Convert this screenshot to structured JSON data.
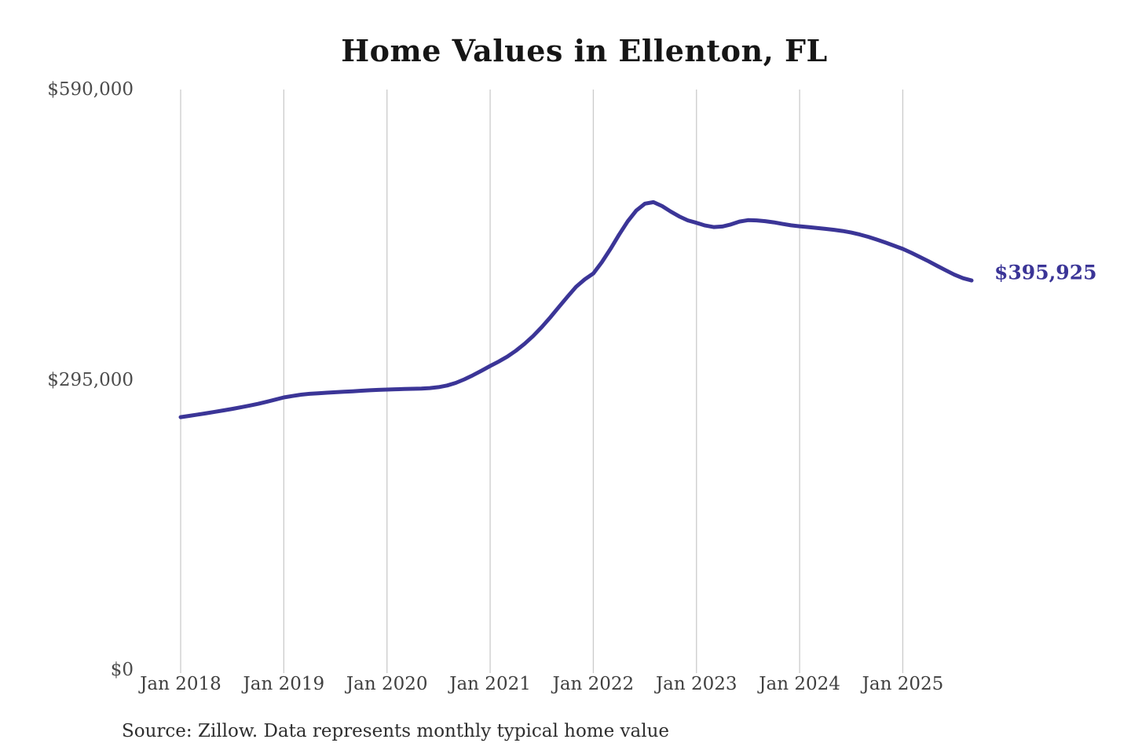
{
  "source_note": "Source: Zillow. Data represents monthly typical home value",
  "colors": {
    "line": "#3b3597",
    "grid": "#cbcbcb",
    "value_label": "#3b3597",
    "axis_text": "#404040",
    "title_text": "#161616",
    "background": "#ffffff"
  },
  "chart_data": {
    "type": "line",
    "title": "Home Values in Ellenton, FL",
    "xlabel": "",
    "ylabel": "",
    "ylim": [
      0,
      590000
    ],
    "y_ticks": [
      0,
      295000,
      590000
    ],
    "y_tick_labels": [
      "$0",
      "$295,000",
      "$590,000"
    ],
    "x_tick_labels": [
      "Jan 2018",
      "Jan 2019",
      "Jan 2020",
      "Jan 2021",
      "Jan 2022",
      "Jan 2023",
      "Jan 2024",
      "Jan 2025"
    ],
    "grid": "vertical-only",
    "legend": "none",
    "start_month": "2018-01",
    "end_month": "2025-09",
    "final_value": 395925,
    "final_value_label": "$395,925",
    "series": [
      {
        "name": "Monthly typical home value",
        "monthly_values": [
          257000,
          258300,
          259600,
          261000,
          262400,
          263900,
          265400,
          267000,
          268700,
          270500,
          272600,
          274800,
          277000,
          278500,
          279800,
          280700,
          281300,
          281800,
          282300,
          282800,
          283300,
          283800,
          284300,
          284700,
          285000,
          285300,
          285600,
          285800,
          286000,
          286500,
          287500,
          289200,
          291800,
          295400,
          299600,
          304200,
          309000,
          313500,
          318500,
          324500,
          331500,
          339500,
          348500,
          358500,
          369000,
          379500,
          389500,
          397000,
          403000,
          414500,
          428000,
          442500,
          456000,
          467000,
          474000,
          475500,
          471500,
          466000,
          461000,
          457000,
          454500,
          451800,
          450200,
          450800,
          452800,
          455800,
          457200,
          457000,
          456200,
          455000,
          453400,
          452000,
          451000,
          450200,
          449300,
          448400,
          447400,
          446200,
          444600,
          442600,
          440200,
          437400,
          434400,
          431200,
          428000,
          424000,
          419800,
          415400,
          410800,
          406200,
          401800,
          398200,
          395925
        ]
      }
    ]
  }
}
